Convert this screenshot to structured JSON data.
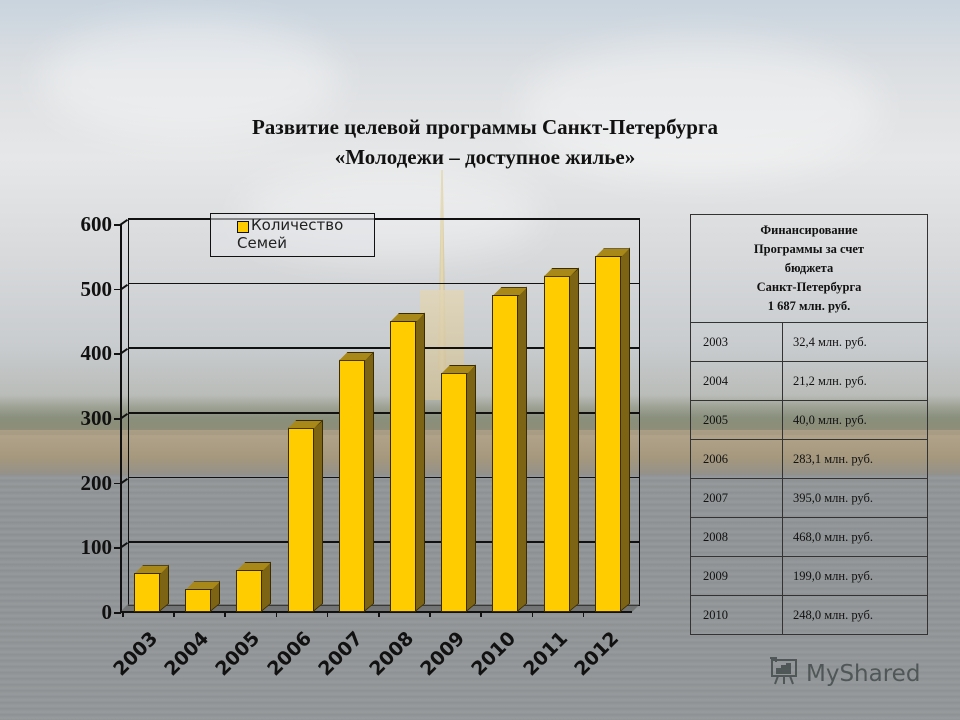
{
  "title": {
    "line1": "Развитие целевой программы Санкт-Петербурга",
    "line2": "«Молодежи – доступное жилье»"
  },
  "chart_data": {
    "type": "bar",
    "title": "Развитие целевой программы Санкт-Петербурга «Молодежи – доступное жилье»",
    "xlabel": "",
    "ylabel": "",
    "categories": [
      "2003",
      "2004",
      "2005",
      "2006",
      "2007",
      "2008",
      "2009",
      "2010",
      "2011",
      "2012"
    ],
    "series": [
      {
        "name": "Количество Семей",
        "color": "#ffcc00",
        "values": [
          60,
          35,
          65,
          285,
          390,
          450,
          370,
          490,
          520,
          550
        ]
      }
    ],
    "ylim": [
      0,
      600
    ],
    "yticks": [
      "0",
      "100",
      "200",
      "300",
      "400",
      "500",
      "600"
    ],
    "grid": true,
    "legend_position": "top-left inside",
    "style": "3d-column"
  },
  "legend": {
    "label_line1": "Количество",
    "label_line2": "Семей"
  },
  "table": {
    "header_lines": [
      "Финансирование",
      "Программы за счет",
      "бюджета",
      "Санкт-Петербурга",
      "1 687 млн. руб."
    ],
    "rows": [
      {
        "year": "2003",
        "amount": "32,4 млн. руб."
      },
      {
        "year": "2004",
        "amount": "21,2 млн. руб."
      },
      {
        "year": "2005",
        "amount": "40,0 млн. руб."
      },
      {
        "year": "2006",
        "amount": "283,1 млн. руб."
      },
      {
        "year": "2007",
        "amount": "395,0 млн. руб."
      },
      {
        "year": "2008",
        "amount": "468,0 млн. руб."
      },
      {
        "year": "2009",
        "amount": "199,0 млн. руб."
      },
      {
        "year": "2010",
        "amount": "248,0 млн. руб."
      }
    ]
  },
  "watermark": {
    "icon": "presentation-board-icon",
    "text": "MyShared"
  }
}
